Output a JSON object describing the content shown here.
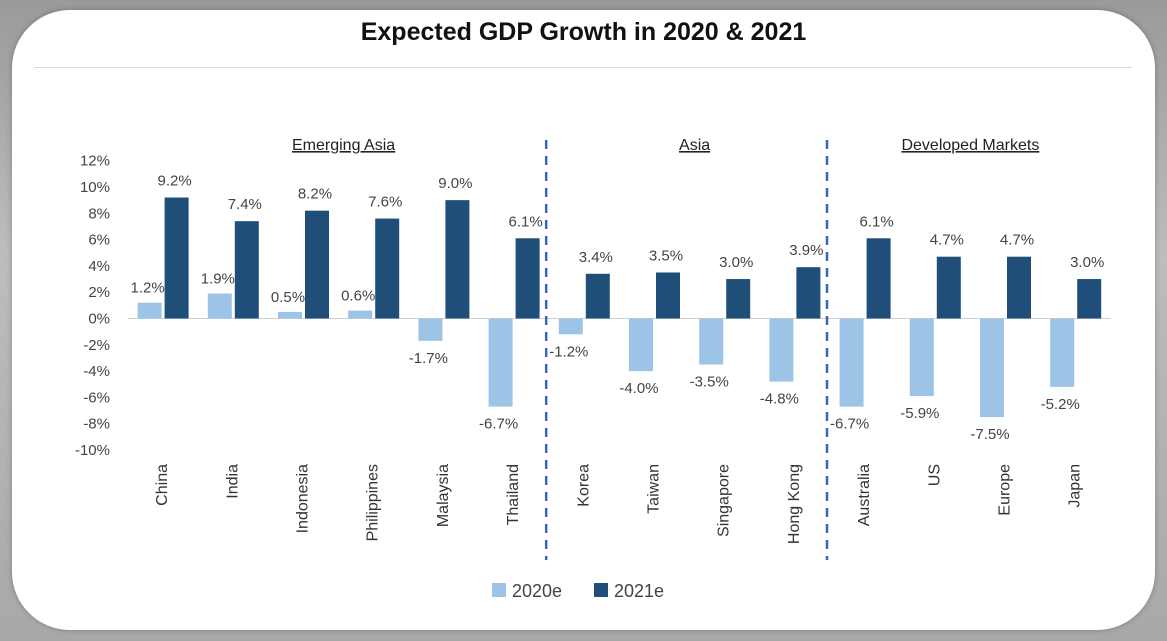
{
  "chart_data": {
    "type": "bar",
    "title": "Expected GDP Growth in 2020 & 2021",
    "categories": [
      "China",
      "India",
      "Indonesia",
      "Philippines",
      "Malaysia",
      "Thailand",
      "Korea",
      "Taiwan",
      "Singapore",
      "Hong Kong",
      "Australia",
      "US",
      "Europe",
      "Japan"
    ],
    "series": [
      {
        "name": "2020e",
        "color": "#9dc3e6",
        "values": [
          1.2,
          1.9,
          0.5,
          0.6,
          -1.7,
          -6.7,
          -1.2,
          -4.0,
          -3.5,
          -4.8,
          -6.7,
          -5.9,
          -7.5,
          -5.2
        ]
      },
      {
        "name": "2021e",
        "color": "#1f4e79",
        "values": [
          9.2,
          7.4,
          8.2,
          7.6,
          9.0,
          6.1,
          3.4,
          3.5,
          3.0,
          3.9,
          6.1,
          4.7,
          4.7,
          3.0
        ]
      }
    ],
    "data_labels": {
      "2020e": [
        "1.2%",
        "1.9%",
        "0.5%",
        "0.6%",
        "-1.7%",
        "-6.7%",
        "-1.2%",
        "-4.0%",
        "-3.5%",
        "-4.8%",
        "-6.7%",
        "-5.9%",
        "-7.5%",
        "-5.2%"
      ],
      "2021e": [
        "9.2%",
        "7.4%",
        "8.2%",
        "7.6%",
        "9.0%",
        "6.1%",
        "3.4%",
        "3.5%",
        "3.0%",
        "3.9%",
        "6.1%",
        "4.7%",
        "4.7%",
        "3.0%"
      ]
    },
    "yticks": [
      "12%",
      "10%",
      "8%",
      "6%",
      "4%",
      "2%",
      "0%",
      "-2%",
      "-4%",
      "-6%",
      "-8%",
      "-10%"
    ],
    "ylim": [
      -10,
      12
    ],
    "groups": [
      {
        "label": "Emerging Asia",
        "start": 0,
        "end": 5
      },
      {
        "label": "Asia",
        "start": 6,
        "end": 9
      },
      {
        "label": "Developed Markets",
        "start": 10,
        "end": 13
      }
    ],
    "legend_position": "bottom",
    "grid": false
  }
}
